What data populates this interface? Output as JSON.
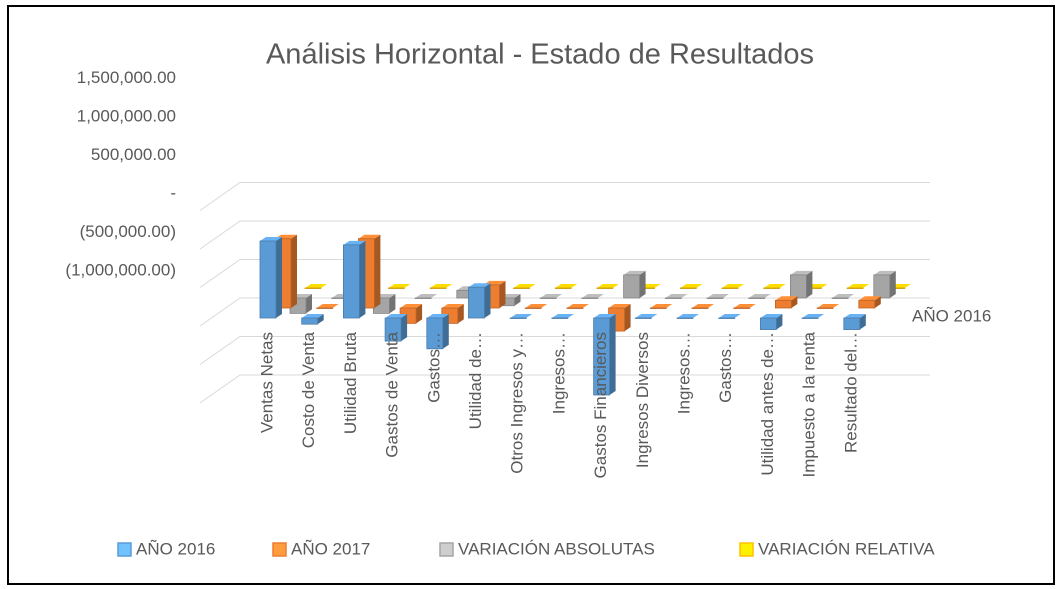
{
  "chart_data": {
    "type": "bar3d",
    "title": "Análisis Horizontal - Estado de Resultados",
    "depth_label": "AÑO 2016",
    "categories": [
      "Ventas Netas",
      "Costo de Venta",
      "Utilidad Bruta",
      "Gastos de Venta",
      "Gastos…",
      "Utilidad de…",
      "Otros Ingresos y…",
      "Ingresos…",
      "Gastos Financieros",
      "Ingresos Diversos",
      "Ingresos…",
      "Gastos…",
      "Utilidad antes de…",
      "Impuesto a la renta",
      "Resultado del…"
    ],
    "series": [
      {
        "name": "AÑO 2016",
        "color": "#5b9bd5",
        "values": [
          1000000,
          -80000,
          950000,
          -300000,
          -400000,
          400000,
          0,
          0,
          -1000000,
          0,
          0,
          0,
          -150000,
          0,
          -150000
        ]
      },
      {
        "name": "AÑO 2017",
        "color": "#ed7d31",
        "values": [
          900000,
          0,
          900000,
          -200000,
          -200000,
          300000,
          0,
          0,
          -300000,
          0,
          0,
          0,
          100000,
          0,
          100000
        ]
      },
      {
        "name": "VARIACIÓN ABSOLUTAS",
        "color": "#a5a5a5",
        "values": [
          -200000,
          0,
          -200000,
          0,
          100000,
          -100000,
          0,
          0,
          300000,
          0,
          0,
          0,
          300000,
          0,
          300000
        ]
      },
      {
        "name": "VARIACIÓN RELATIVA",
        "color": "#ffc000",
        "values": [
          0,
          0,
          0,
          0,
          0,
          0,
          0,
          0,
          0,
          0,
          0,
          0,
          0,
          0,
          0
        ]
      }
    ],
    "ylim": [
      -1000000,
      1500000
    ],
    "yticks": [
      {
        "value": -1000000,
        "label": "(1,000,000.00)"
      },
      {
        "value": -500000,
        "label": "(500,000.00)"
      },
      {
        "value": 0,
        "label": "-"
      },
      {
        "value": 500000,
        "label": "500,000.00"
      },
      {
        "value": 1000000,
        "label": "1,000,000.00"
      },
      {
        "value": 1500000,
        "label": "1,500,000.00"
      }
    ],
    "grid": true
  }
}
